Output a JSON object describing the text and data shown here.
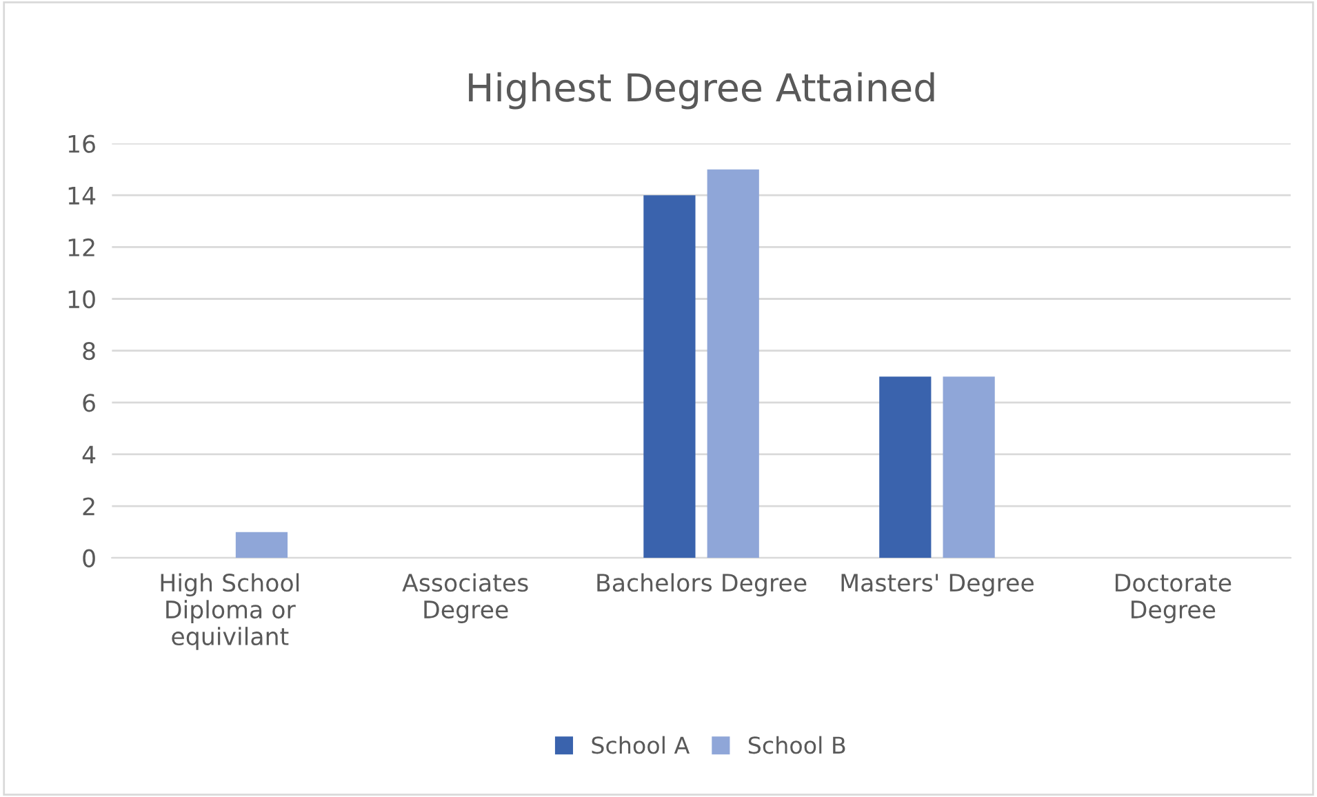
{
  "chart_data": {
    "type": "bar",
    "title": "Highest Degree Attained",
    "categories": [
      "High School\nDiploma or\nequivilant",
      "Associates\nDegree",
      "Bachelors Degree",
      "Masters' Degree",
      "Doctorate\nDegree"
    ],
    "series": [
      {
        "name": "School A",
        "color": "#3a63ad",
        "values": [
          0,
          0,
          14,
          7,
          0
        ]
      },
      {
        "name": "School B",
        "color": "#8fa6d8",
        "values": [
          1,
          0,
          15,
          7,
          0
        ]
      }
    ],
    "ylim": [
      0,
      16
    ],
    "yticks": [
      0,
      2,
      4,
      6,
      8,
      10,
      12,
      14,
      16
    ],
    "grid": "y",
    "legend": "bottom"
  }
}
